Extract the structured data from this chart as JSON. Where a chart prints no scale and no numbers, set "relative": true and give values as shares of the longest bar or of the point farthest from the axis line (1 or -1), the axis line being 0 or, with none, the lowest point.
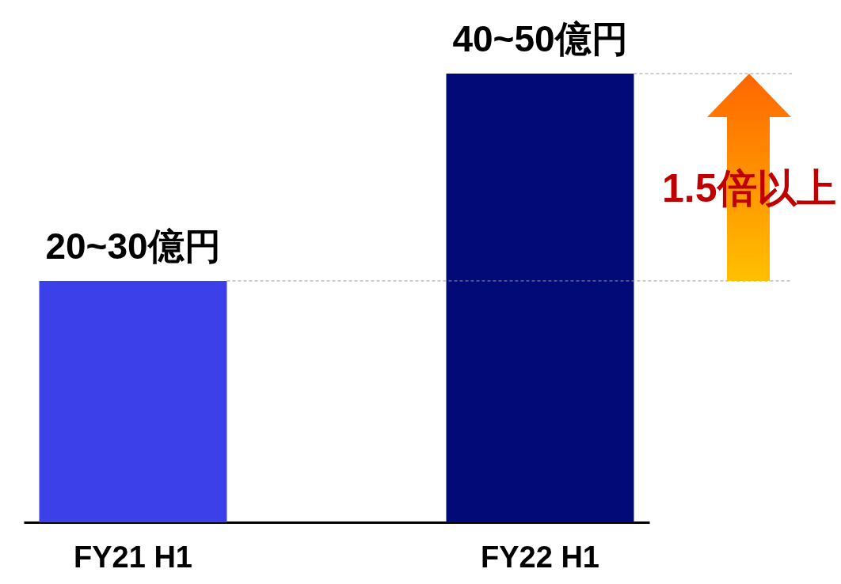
{
  "chart_data": {
    "type": "bar",
    "relative": true,
    "categories": [
      "FY21 H1",
      "FY22 H1"
    ],
    "values": [
      0.538,
      1
    ],
    "colors": [
      "#3c40e8",
      "#020a78"
    ],
    "ref_lines": [
      {
        "axis": "y",
        "value": 0.538,
        "color": "#999999",
        "line_style": "dashed"
      },
      {
        "axis": "y",
        "value": 1,
        "color": "#999999",
        "line_style": "dashed"
      }
    ],
    "annotations": [
      {
        "text": "20~30億円",
        "x": "FY21 H1",
        "y": 0.538
      },
      {
        "text": "40~50億円",
        "x": "FY22 H1",
        "y": 1
      },
      "1.5倍以上"
    ]
  }
}
